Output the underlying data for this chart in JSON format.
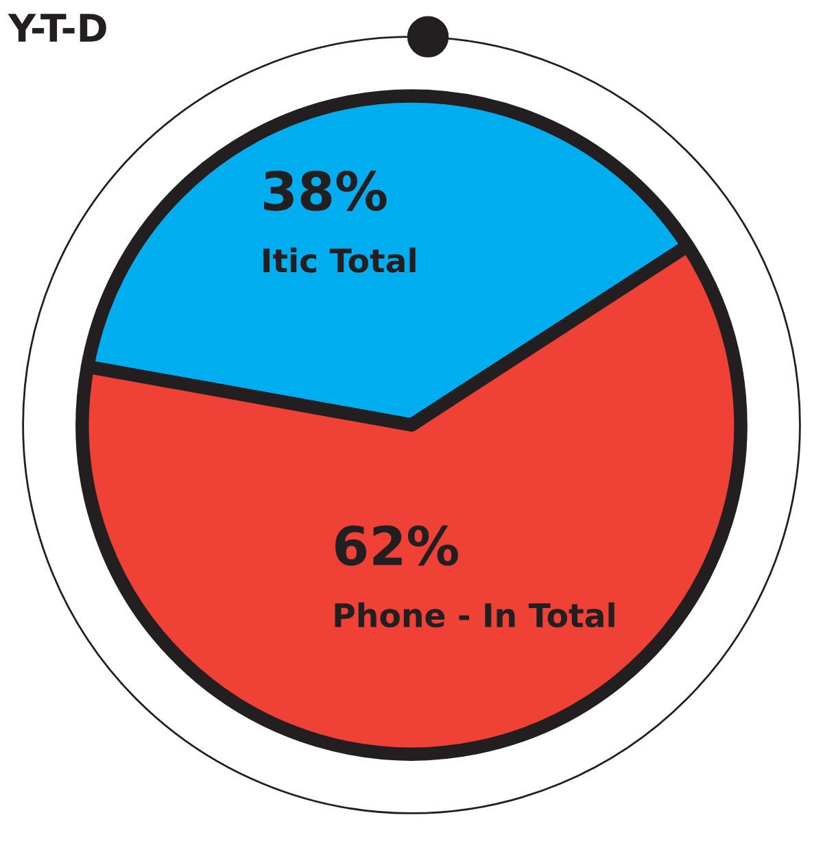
{
  "chart_data": {
    "type": "pie",
    "title": "Y-T-D",
    "categories": [
      "Itic Total",
      "Phone - In Total"
    ],
    "values": [
      38,
      62
    ],
    "colors": [
      "#00aeef",
      "#ef4136"
    ],
    "value_labels": [
      "38%",
      "62%"
    ]
  }
}
